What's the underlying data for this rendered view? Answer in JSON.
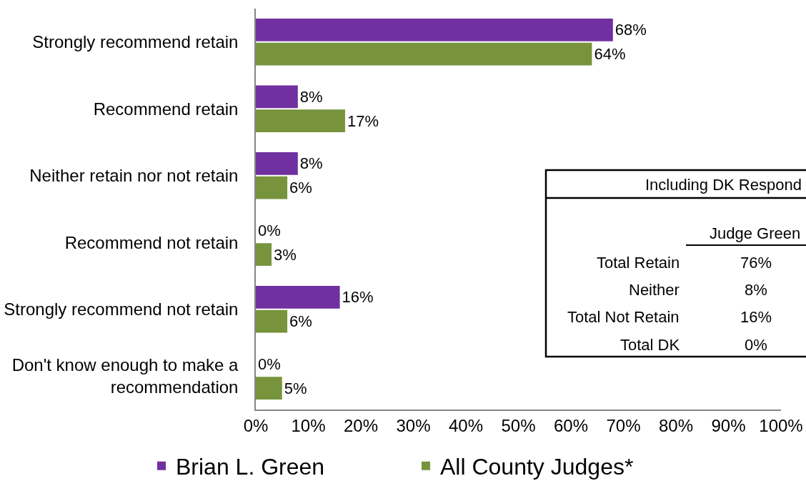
{
  "chart_data": {
    "type": "bar",
    "orientation": "horizontal",
    "categories": [
      "Strongly recommend retain",
      "Recommend retain",
      "Neither retain nor not retain",
      "Recommend not retain",
      "Strongly recommend not retain",
      "Don't know enough to make a recommendation"
    ],
    "series": [
      {
        "name": "Brian L. Green",
        "color": "#7030a0",
        "values": [
          68,
          8,
          8,
          0,
          16,
          0
        ],
        "value_labels": [
          "68%",
          "8%",
          "8%",
          "0%",
          "16%",
          "0%"
        ]
      },
      {
        "name": "All County Judges*",
        "color": "#77933c",
        "values": [
          64,
          17,
          6,
          3,
          6,
          5
        ],
        "value_labels": [
          "64%",
          "17%",
          "6%",
          "3%",
          "6%",
          "5%"
        ]
      }
    ],
    "xlim": [
      0,
      100
    ],
    "xticks": [
      {
        "value": 0,
        "label": "0%"
      },
      {
        "value": 10,
        "label": "10%"
      },
      {
        "value": 20,
        "label": "20%"
      },
      {
        "value": 30,
        "label": "30%"
      },
      {
        "value": 40,
        "label": "40%"
      },
      {
        "value": 50,
        "label": "50%"
      },
      {
        "value": 60,
        "label": "60%"
      },
      {
        "value": 70,
        "label": "70%"
      },
      {
        "value": 80,
        "label": "80%"
      },
      {
        "value": 90,
        "label": "90%"
      },
      {
        "value": 100,
        "label": "100%"
      }
    ],
    "legend": "bottom",
    "annotations": [
      "Including DK Respond",
      "Judge Green",
      "Total Retain",
      "76%",
      "Neither",
      "8%",
      "Total Not Retain",
      "16%",
      "Total DK",
      "0%"
    ]
  }
}
